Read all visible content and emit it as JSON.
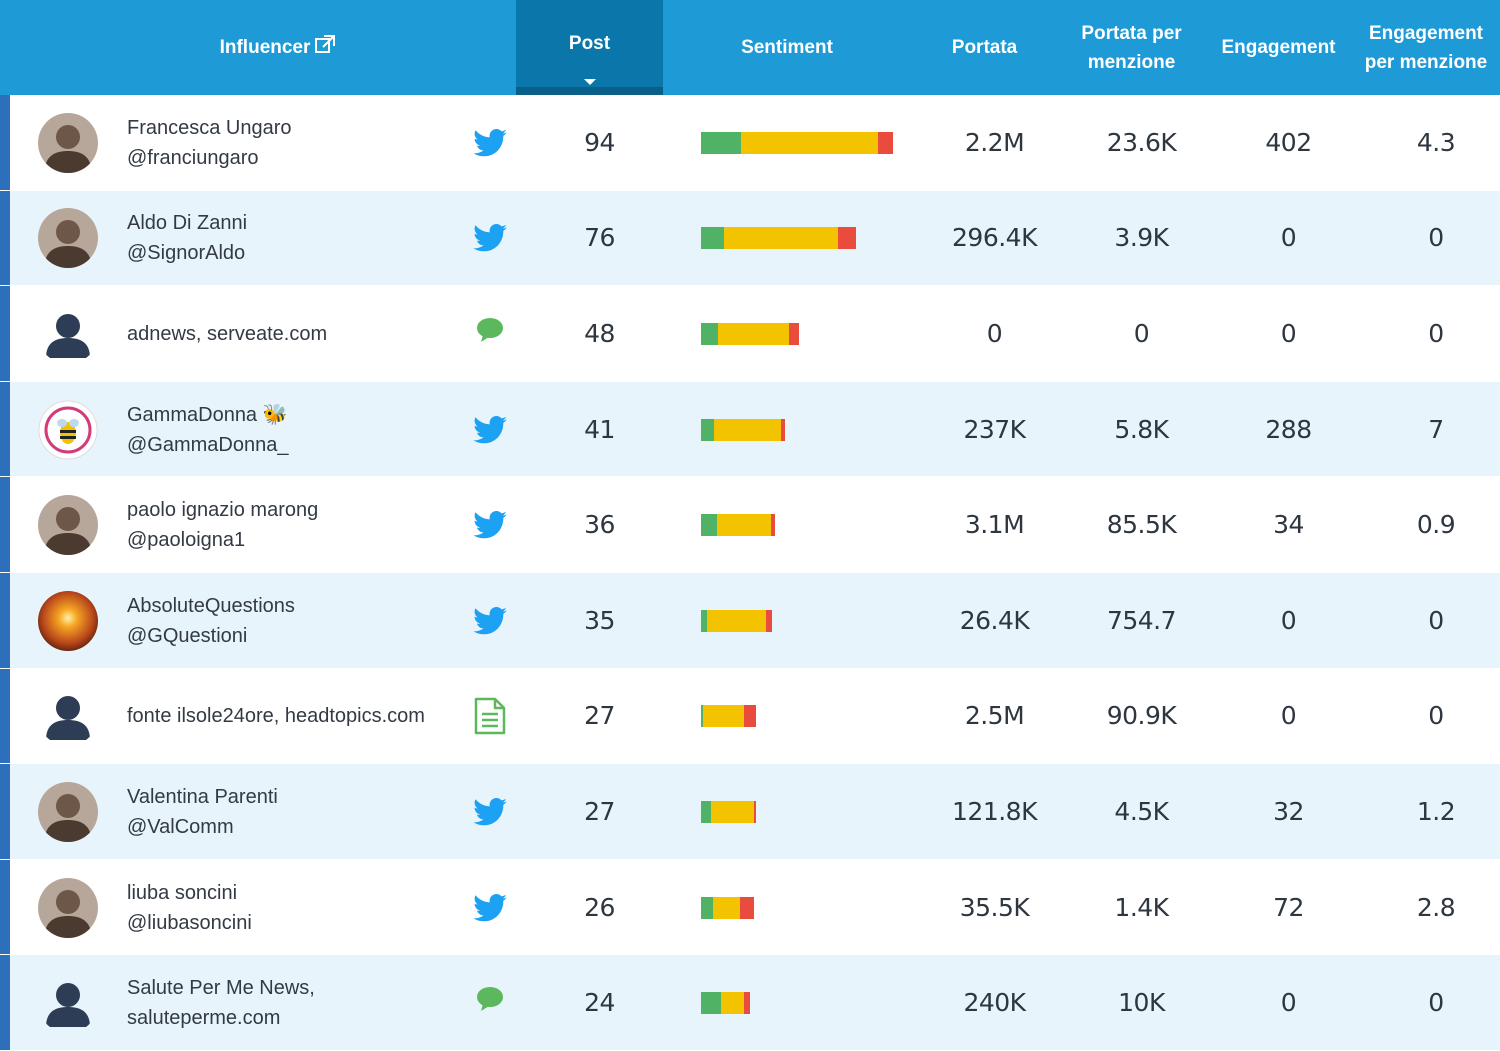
{
  "header": {
    "influencer": "Influencer",
    "post": "Post",
    "sentiment": "Sentiment",
    "reach": "Portata",
    "reach_per_mention": "Portata per menzione",
    "engagement": "Engagement",
    "engagement_per_mention": "Engagement per menzione",
    "sort_column": "Post",
    "sort_direction": "descending"
  },
  "colors": {
    "header_bg": "#1e9bd7",
    "active_header_bg": "#0a76a9",
    "row_alt_bg": "#e8f4fb",
    "positive": "#4fb264",
    "neutral": "#f3c300",
    "negative": "#e94b3c",
    "twitter": "#1da1f2",
    "source_green": "#5cb85c"
  },
  "rows": [
    {
      "name": "Francesca Ungaro",
      "handle": "@franciungaro",
      "source_icon": "twitter-icon",
      "avatar": "photo",
      "post": "94",
      "reach": "2.2M",
      "reach_per_mention": "23.6K",
      "engagement": "402",
      "engagement_per_mention": "4.3",
      "sentiment": {
        "positive": 0.21,
        "neutral": 0.71,
        "negative": 0.08
      }
    },
    {
      "name": "Aldo Di Zanni",
      "handle": "@SignorAldo",
      "source_icon": "twitter-icon",
      "avatar": "photo",
      "post": "76",
      "reach": "296.4K",
      "reach_per_mention": "3.9K",
      "engagement": "0",
      "engagement_per_mention": "0",
      "sentiment": {
        "positive": 0.15,
        "neutral": 0.73,
        "negative": 0.12
      }
    },
    {
      "name": "adnews, serveate.com",
      "handle": "",
      "source_icon": "comment-icon",
      "avatar": "user",
      "post": "48",
      "reach": "0",
      "reach_per_mention": "0",
      "engagement": "0",
      "engagement_per_mention": "0",
      "sentiment": {
        "positive": 0.17,
        "neutral": 0.73,
        "negative": 0.1
      }
    },
    {
      "name": "GammaDonna 🐝",
      "handle": "@GammaDonna_",
      "source_icon": "twitter-icon",
      "avatar": "logo",
      "post": "41",
      "reach": "237K",
      "reach_per_mention": "5.8K",
      "engagement": "288",
      "engagement_per_mention": "7",
      "sentiment": {
        "positive": 0.15,
        "neutral": 0.8,
        "negative": 0.05
      }
    },
    {
      "name": "paolo ignazio marong",
      "handle": "@paoloigna1",
      "source_icon": "twitter-icon",
      "avatar": "photo",
      "post": "36",
      "reach": "3.1M",
      "reach_per_mention": "85.5K",
      "engagement": "34",
      "engagement_per_mention": "0.9",
      "sentiment": {
        "positive": 0.22,
        "neutral": 0.73,
        "negative": 0.05
      }
    },
    {
      "name": "AbsoluteQuestions",
      "handle": "@GQuestioni",
      "source_icon": "twitter-icon",
      "avatar": "sunset",
      "post": "35",
      "reach": "26.4K",
      "reach_per_mention": "754.7",
      "engagement": "0",
      "engagement_per_mention": "0",
      "sentiment": {
        "positive": 0.08,
        "neutral": 0.83,
        "negative": 0.09
      }
    },
    {
      "name": "fonte ilsole24ore, headtopics.com",
      "handle": "",
      "source_icon": "document-icon",
      "avatar": "user",
      "post": "27",
      "reach": "2.5M",
      "reach_per_mention": "90.9K",
      "engagement": "0",
      "engagement_per_mention": "0",
      "sentiment": {
        "positive": 0.04,
        "neutral": 0.74,
        "negative": 0.22
      }
    },
    {
      "name": "Valentina Parenti",
      "handle": "@ValComm",
      "source_icon": "twitter-icon",
      "avatar": "photo",
      "post": "27",
      "reach": "121.8K",
      "reach_per_mention": "4.5K",
      "engagement": "32",
      "engagement_per_mention": "1.2",
      "sentiment": {
        "positive": 0.19,
        "neutral": 0.77,
        "negative": 0.04
      }
    },
    {
      "name": "liuba soncini",
      "handle": "@liubasoncini",
      "source_icon": "twitter-icon",
      "avatar": "photo",
      "post": "26",
      "reach": "35.5K",
      "reach_per_mention": "1.4K",
      "engagement": "72",
      "engagement_per_mention": "2.8",
      "sentiment": {
        "positive": 0.23,
        "neutral": 0.5,
        "negative": 0.27
      }
    },
    {
      "name": "Salute Per Me News,",
      "handle": "saluteperme.com",
      "source_icon": "comment-icon",
      "avatar": "user",
      "post": "24",
      "reach": "240K",
      "reach_per_mention": "10K",
      "engagement": "0",
      "engagement_per_mention": "0",
      "sentiment": {
        "positive": 0.4,
        "neutral": 0.47,
        "negative": 0.13
      }
    }
  ]
}
